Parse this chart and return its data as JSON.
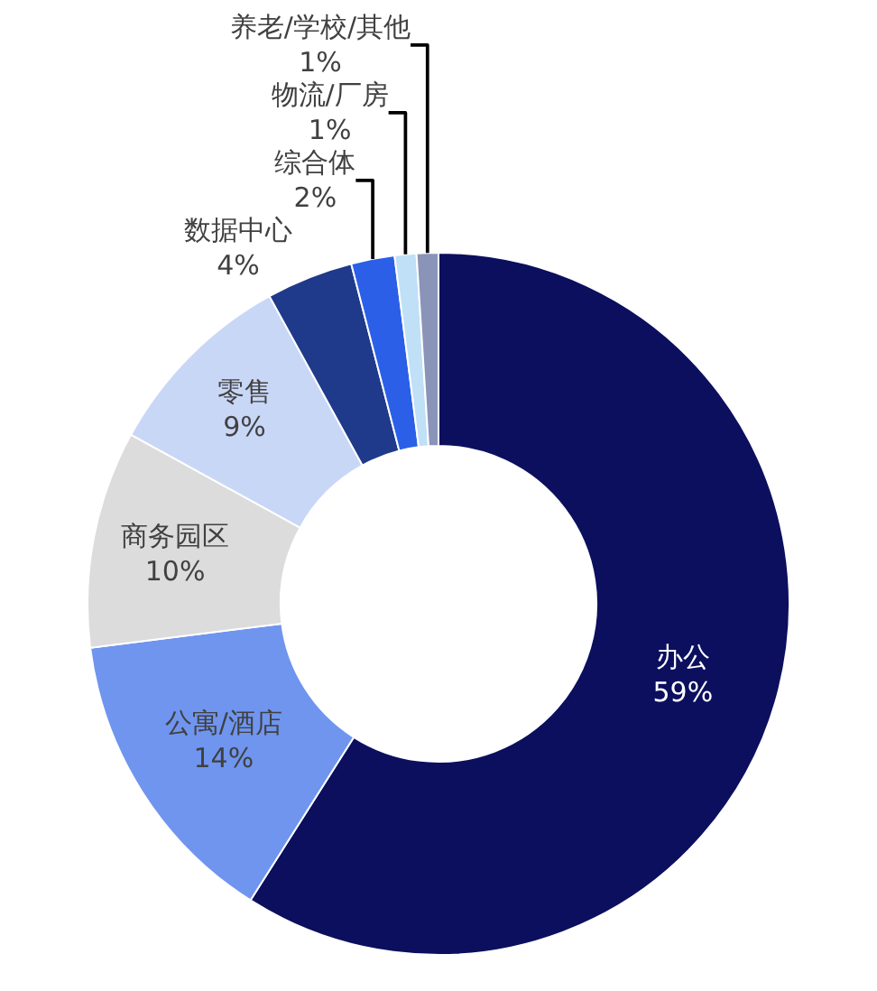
{
  "chart_data": {
    "type": "donut",
    "categories": [
      "办公",
      "公寓/酒店",
      "商务园区",
      "零售",
      "数据中心",
      "综合体",
      "物流/厂房",
      "养老/学校/其他"
    ],
    "values": [
      59,
      14,
      10,
      9,
      4,
      2,
      1,
      1
    ],
    "value_labels": [
      "59%",
      "14%",
      "10%",
      "9%",
      "4%",
      "2%",
      "1%",
      "1%"
    ],
    "colors": [
      "#0b0f5e",
      "#6f95ef",
      "#dcdcdc",
      "#c9d7f7",
      "#1f3a8a",
      "#2b5fe8",
      "#bfe0f7",
      "#8a94b8"
    ],
    "legend": false
  }
}
